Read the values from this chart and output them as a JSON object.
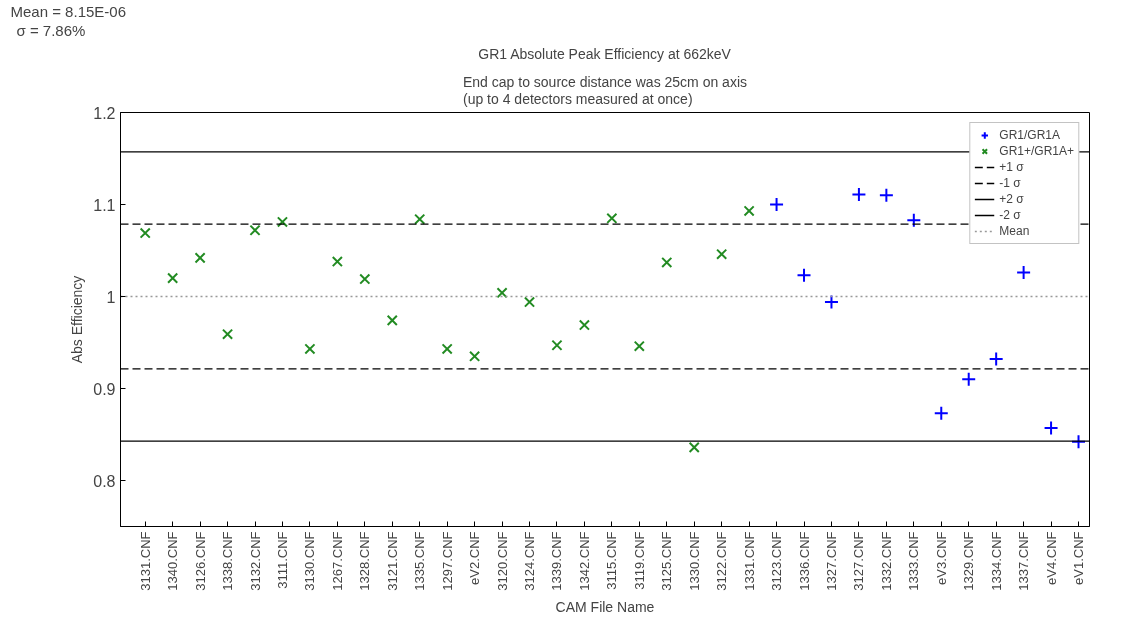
{
  "chart_data": {
    "type": "scatter",
    "title": "GR1 Absolute Peak Efficiency at 662keV",
    "subtitle": "End cap to source distance was 25cm on axis\n(up to 4 detectors measured at once)",
    "xlabel": "CAM File Name",
    "ylabel": "Abs Efficiency",
    "annotations": [
      "Mean = 8.15E-06",
      "σ = 7.86%"
    ],
    "categories": [
      "3131.CNF",
      "1340.CNF",
      "3126.CNF",
      "1338.CNF",
      "3132.CNF",
      "3111.CNF",
      "3130.CNF",
      "1267.CNF",
      "1328.CNF",
      "3121.CNF",
      "1335.CNF",
      "1297.CNF",
      "eV2.CNF",
      "3120.CNF",
      "3124.CNF",
      "1339.CNF",
      "1342.CNF",
      "3115.CNF",
      "3119.CNF",
      "3125.CNF",
      "1330.CNF",
      "3122.CNF",
      "1331.CNF",
      "3123.CNF",
      "1336.CNF",
      "1327.CNF",
      "3127.CNF",
      "1332.CNF",
      "1333.CNF",
      "eV3.CNF",
      "1329.CNF",
      "1334.CNF",
      "1337.CNF",
      "eV4.CNF",
      "eV1.CNF"
    ],
    "series": [
      {
        "name": "GR1/GR1A",
        "color": "#0000ff",
        "marker": "cross",
        "values": [
          null,
          null,
          null,
          null,
          null,
          null,
          null,
          null,
          null,
          null,
          null,
          null,
          null,
          null,
          null,
          null,
          null,
          null,
          null,
          null,
          null,
          null,
          null,
          1.1,
          1.023,
          0.994,
          1.111,
          1.11,
          1.083,
          0.873,
          0.91,
          0.932,
          1.026,
          0.857,
          0.842
        ]
      },
      {
        "name": "GR1+/GR1A+",
        "color": "#228b22",
        "marker": "x",
        "values": [
          1.069,
          1.02,
          1.042,
          0.959,
          1.072,
          1.081,
          0.943,
          1.038,
          1.019,
          0.974,
          1.084,
          0.943,
          0.935,
          1.004,
          0.994,
          0.947,
          0.969,
          1.085,
          0.946,
          1.037,
          0.836,
          1.046,
          1.093,
          null,
          null,
          null,
          null,
          null,
          null,
          null,
          null,
          null,
          null,
          null,
          null
        ]
      }
    ],
    "ref_lines": [
      {
        "axis": "y",
        "value": 1.0786,
        "label": "+1 σ",
        "color": "#000000",
        "line_style": "dashed"
      },
      {
        "axis": "y",
        "value": 0.9214,
        "label": "-1 σ",
        "color": "#000000",
        "line_style": "dashed"
      },
      {
        "axis": "y",
        "value": 1.1572,
        "label": "+2 σ",
        "color": "#000000",
        "line_style": "solid"
      },
      {
        "axis": "y",
        "value": 0.8428,
        "label": "-2 σ",
        "color": "#000000",
        "line_style": "solid"
      },
      {
        "axis": "y",
        "value": 1.0,
        "label": "Mean",
        "color": "#999999",
        "line_style": "dotted"
      }
    ],
    "ylim": [
      0.75,
      1.2
    ],
    "yticks": [
      0.8,
      0.9,
      1,
      1.1,
      1.2
    ],
    "grid": false,
    "legend": "top right"
  }
}
